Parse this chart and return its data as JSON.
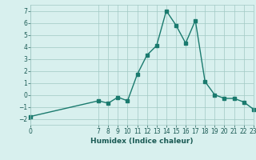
{
  "title": "",
  "xlabel": "Humidex (Indice chaleur)",
  "ylabel": "",
  "x_values": [
    0,
    7,
    8,
    9,
    10,
    11,
    12,
    13,
    14,
    15,
    16,
    17,
    18,
    19,
    20,
    21,
    22,
    23
  ],
  "y_values": [
    -1.8,
    -0.5,
    -0.7,
    -0.2,
    -0.5,
    1.7,
    3.3,
    4.1,
    7.0,
    5.8,
    4.3,
    6.2,
    1.1,
    0.0,
    -0.3,
    -0.3,
    -0.6,
    -1.2
  ],
  "line_color": "#1a7a6e",
  "marker": "s",
  "markersize": 2.5,
  "linewidth": 1.0,
  "bg_color": "#d8f0ee",
  "grid_color": "#a0c8c4",
  "xlim": [
    0,
    23
  ],
  "ylim": [
    -2.5,
    7.5
  ],
  "yticks": [
    -2,
    -1,
    0,
    1,
    2,
    3,
    4,
    5,
    6,
    7
  ],
  "xticks": [
    0,
    7,
    8,
    9,
    10,
    11,
    12,
    13,
    14,
    15,
    16,
    17,
    18,
    19,
    20,
    21,
    22,
    23
  ],
  "tick_fontsize": 5.5,
  "xlabel_fontsize": 6.5,
  "label_color": "#1a5a54"
}
